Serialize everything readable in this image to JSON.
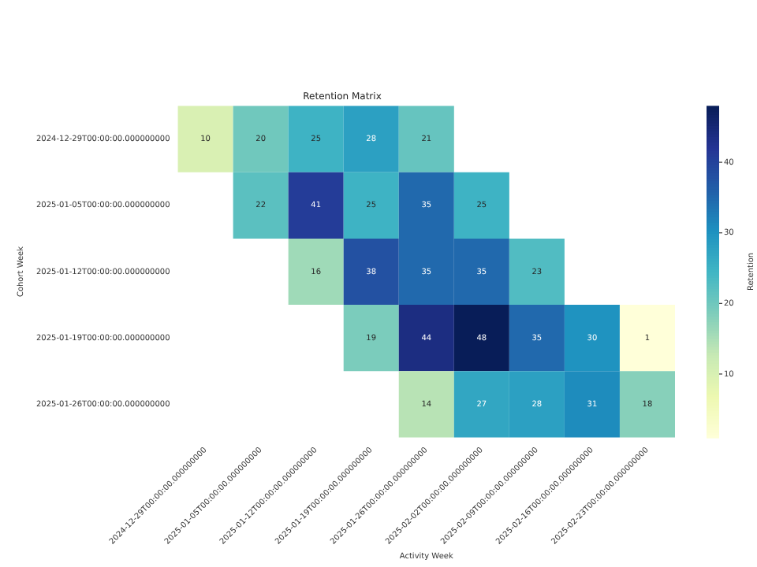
{
  "chart_data": {
    "type": "heatmap",
    "title": "Retention Matrix",
    "xlabel": "Activity Week",
    "ylabel": "Cohort Week",
    "clabel": "Retention",
    "categories": [
      "2024-12-29T00:00:00.000000000",
      "2025-01-05T00:00:00.000000000",
      "2025-01-12T00:00:00.000000000",
      "2025-01-19T00:00:00.000000000",
      "2025-01-26T00:00:00.000000000",
      "2025-02-02T00:00:00.000000000",
      "2025-02-09T00:00:00.000000000",
      "2025-02-16T00:00:00.000000000",
      "2025-02-23T00:00:00.000000000"
    ],
    "y_categories": [
      "2024-12-29T00:00:00.000000000",
      "2025-01-05T00:00:00.000000000",
      "2025-01-12T00:00:00.000000000",
      "2025-01-19T00:00:00.000000000",
      "2025-01-26T00:00:00.000000000"
    ],
    "cells": [
      [
        10,
        20,
        25,
        28,
        21,
        null,
        null,
        null,
        null
      ],
      [
        null,
        22,
        41,
        25,
        35,
        25,
        null,
        null,
        null
      ],
      [
        null,
        null,
        16,
        38,
        35,
        35,
        23,
        null,
        null
      ],
      [
        null,
        null,
        null,
        19,
        44,
        48,
        35,
        30,
        1
      ],
      [
        null,
        null,
        null,
        null,
        14,
        27,
        28,
        31,
        18
      ]
    ],
    "clim": [
      1,
      48
    ],
    "cticks": [
      10,
      20,
      30,
      40
    ],
    "data_labels": true
  }
}
